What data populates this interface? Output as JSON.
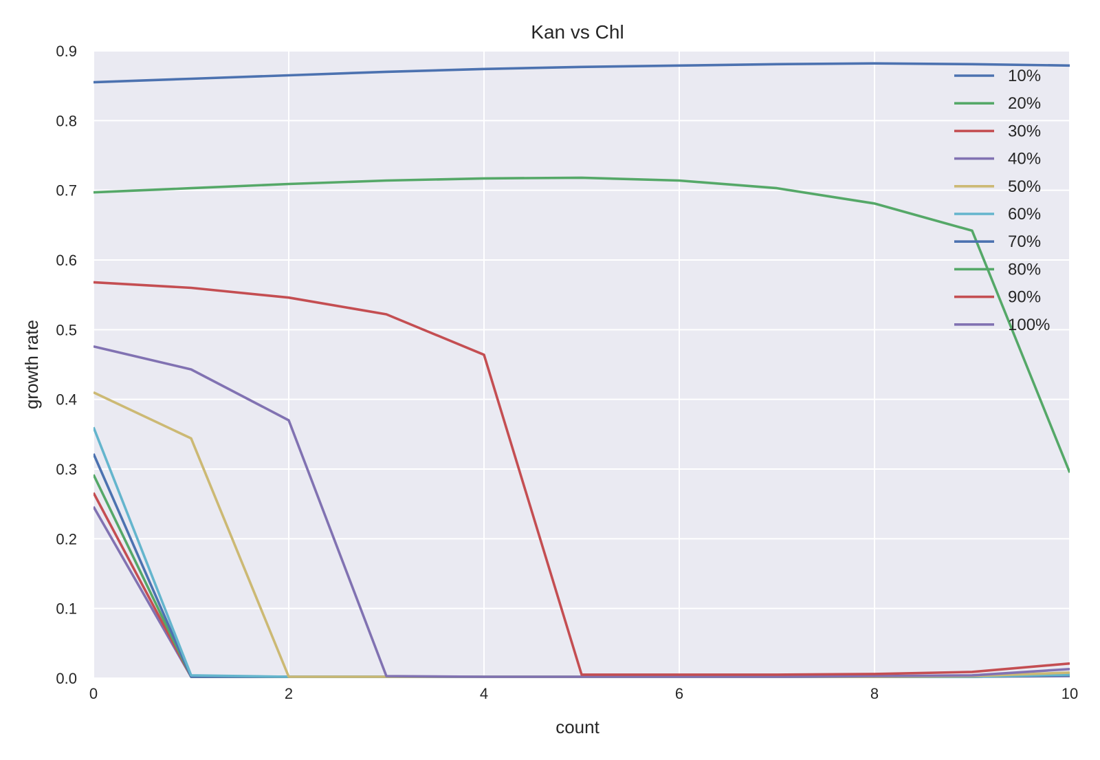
{
  "chart_data": {
    "type": "line",
    "title": "Kan vs Chl",
    "xlabel": "count",
    "ylabel": "growth rate",
    "xlim": [
      0,
      10
    ],
    "ylim": [
      0,
      0.9
    ],
    "x": [
      0,
      1,
      2,
      3,
      4,
      5,
      6,
      7,
      8,
      9,
      10
    ],
    "x_ticks": [
      "0",
      "2",
      "4",
      "6",
      "8",
      "10"
    ],
    "y_ticks": [
      "0.0",
      "0.1",
      "0.2",
      "0.3",
      "0.4",
      "0.5",
      "0.6",
      "0.7",
      "0.8",
      "0.9"
    ],
    "grid": true,
    "background": "#eaeaf2",
    "legend_position": "top-right",
    "series": [
      {
        "name": "10%",
        "color": "#4c72b0",
        "values": [
          0.855,
          0.86,
          0.865,
          0.87,
          0.874,
          0.877,
          0.879,
          0.881,
          0.882,
          0.881,
          0.879
        ]
      },
      {
        "name": "20%",
        "color": "#55a868",
        "values": [
          0.697,
          0.703,
          0.709,
          0.714,
          0.717,
          0.718,
          0.714,
          0.703,
          0.681,
          0.642,
          0.295
        ]
      },
      {
        "name": "30%",
        "color": "#c44e52",
        "values": [
          0.568,
          0.56,
          0.546,
          0.522,
          0.464,
          0.005,
          0.005,
          0.005,
          0.006,
          0.009,
          0.021
        ]
      },
      {
        "name": "40%",
        "color": "#8172b2",
        "values": [
          0.476,
          0.443,
          0.37,
          0.003,
          0.002,
          0.002,
          0.002,
          0.002,
          0.003,
          0.004,
          0.013
        ]
      },
      {
        "name": "50%",
        "color": "#ccb974",
        "values": [
          0.41,
          0.344,
          0.002,
          0.002,
          0.002,
          0.002,
          0.002,
          0.002,
          0.002,
          0.003,
          0.008
        ]
      },
      {
        "name": "60%",
        "color": "#64b5cd",
        "values": [
          0.36,
          0.004,
          0.002,
          0.002,
          0.002,
          0.002,
          0.002,
          0.002,
          0.002,
          0.002,
          0.005
        ]
      },
      {
        "name": "70%",
        "color": "#4c72b0",
        "values": [
          0.322,
          0.002,
          0.002,
          0.002,
          0.002,
          0.002,
          0.002,
          0.002,
          0.002,
          0.002,
          0.004
        ]
      },
      {
        "name": "80%",
        "color": "#55a868",
        "values": [
          0.292,
          0.002,
          0.002,
          0.002,
          0.002,
          0.002,
          0.002,
          0.002,
          0.002,
          0.002,
          0.004
        ]
      },
      {
        "name": "90%",
        "color": "#c44e52",
        "values": [
          0.266,
          0.002,
          0.002,
          0.002,
          0.002,
          0.002,
          0.002,
          0.002,
          0.002,
          0.002,
          0.004
        ]
      },
      {
        "name": "100%",
        "color": "#8172b2",
        "values": [
          0.246,
          0.002,
          0.002,
          0.002,
          0.002,
          0.002,
          0.002,
          0.002,
          0.002,
          0.002,
          0.003
        ]
      }
    ]
  }
}
